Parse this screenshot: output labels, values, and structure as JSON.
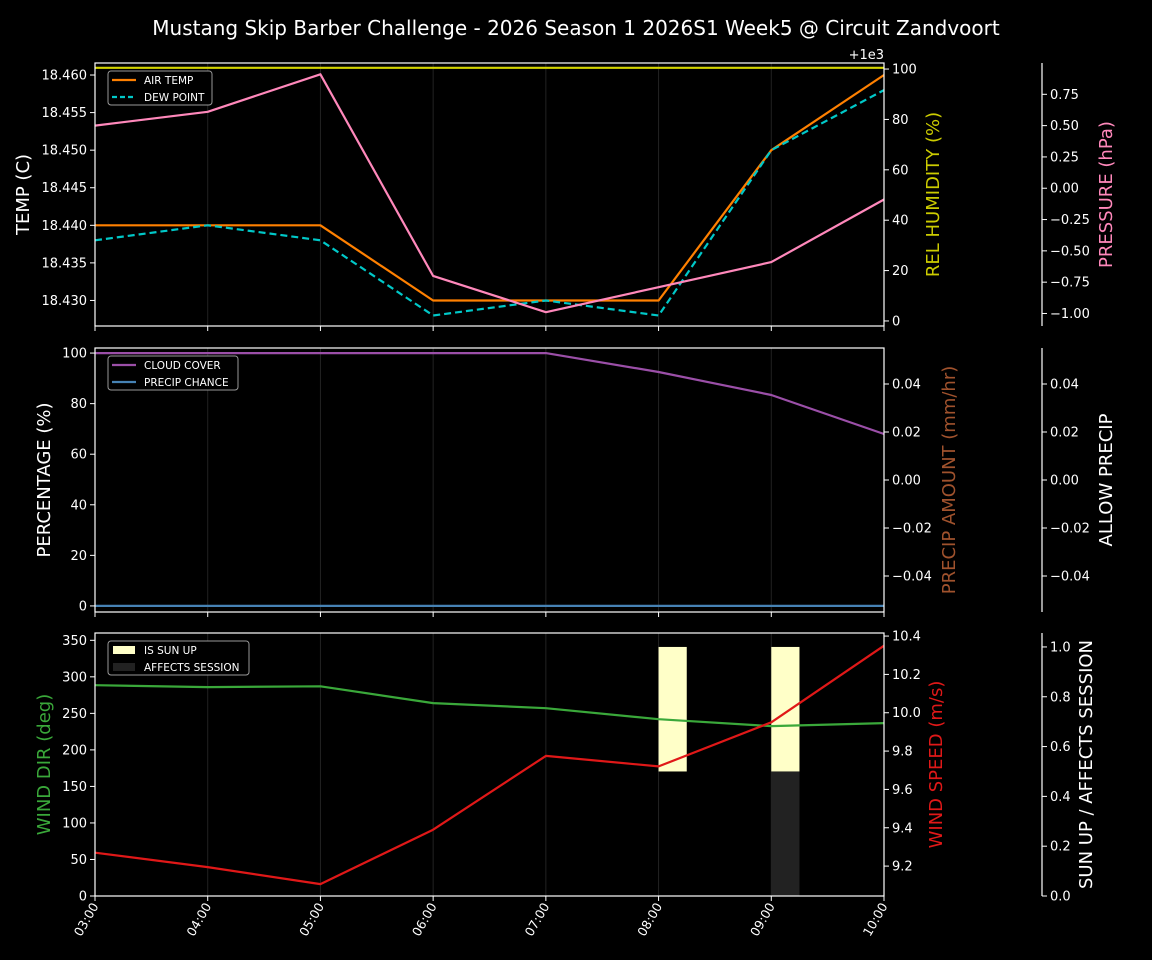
{
  "chart_data": {
    "type": "line",
    "title": "Mustang Skip Barber Challenge - 2026 Season 1 2026S1 Week5 @ Circuit Zandvoort",
    "x": [
      "03:00",
      "04:00",
      "05:00",
      "06:00",
      "07:00",
      "08:00",
      "09:00",
      "10:00"
    ],
    "grid": "vertical lines at each hour",
    "panels": [
      {
        "left_axis": {
          "label": "TEMP (C)",
          "color": "#ffffff",
          "lim": [
            18.4266,
            18.4616
          ],
          "ticks": [
            "18.430",
            "18.435",
            "18.440",
            "18.445",
            "18.450",
            "18.455",
            "18.460"
          ]
        },
        "right_axis": {
          "label": "REL HUMIDITY (%)",
          "color": "#cccc00",
          "lim": [
            -2,
            102.4
          ],
          "ticks": [
            "0",
            "20",
            "40",
            "60",
            "80",
            "100"
          ],
          "offset_text": "+1e3"
        },
        "third_axis": {
          "label": "PRESSURE (hPa)",
          "color": "#ff88bb",
          "lim": [
            -1.1,
            1.0
          ],
          "ticks": [
            "-1.00",
            "-0.75",
            "-0.50",
            "-0.25",
            "0.00",
            "0.25",
            "0.50",
            "0.75"
          ]
        },
        "legend": {
          "placement": "upper-left",
          "entries": [
            "AIR TEMP",
            "DEW POINT"
          ]
        },
        "series": [
          {
            "name": "AIR TEMP",
            "axis": "left",
            "color": "#ff8000",
            "dash": false,
            "values": [
              18.44,
              18.44,
              18.44,
              18.43,
              18.43,
              18.43,
              18.45,
              18.46
            ]
          },
          {
            "name": "DEW POINT",
            "axis": "left",
            "color": "#00c8c8",
            "dash": true,
            "values": [
              18.438,
              18.44,
              18.438,
              18.428,
              18.43,
              18.428,
              18.45,
              18.458
            ]
          },
          {
            "axis": "right",
            "color": "#d4d400",
            "dash": false,
            "values": [
              100.5,
              100.5,
              100.5,
              100.5,
              100.5,
              100.5,
              100.5,
              100.5
            ]
          },
          {
            "axis": "third",
            "color": "#ff88bb",
            "dash": false,
            "values": [
              0.5,
              0.61,
              0.91,
              -0.7,
              -0.99,
              -0.79,
              -0.59,
              -0.09
            ]
          }
        ]
      },
      {
        "left_axis": {
          "label": "PERCENTAGE (%)",
          "color": "#ffffff",
          "lim": [
            -2.4,
            102
          ],
          "ticks": [
            "0",
            "20",
            "40",
            "60",
            "80",
            "100"
          ]
        },
        "right_axis": {
          "label": "PRECIP AMOUNT (mm/hr)",
          "color": "#a0522d",
          "lim": [
            -0.055,
            0.055
          ],
          "ticks": [
            "-0.04",
            "-0.02",
            "0.00",
            "0.02",
            "0.04"
          ]
        },
        "third_axis": {
          "label": "ALLOW PRECIP",
          "color": "#ffffff",
          "lim": [
            -0.055,
            0.055
          ],
          "ticks": [
            "-0.04",
            "-0.02",
            "0.00",
            "0.02",
            "0.04"
          ]
        },
        "legend": {
          "placement": "upper-left",
          "entries": [
            "CLOUD COVER",
            "PRECIP CHANCE"
          ]
        },
        "series": [
          {
            "name": "CLOUD COVER",
            "axis": "left",
            "color": "#9b4fa8",
            "dash": false,
            "values": [
              100,
              100,
              100,
              100,
              100,
              92.5,
              83.4,
              68
            ]
          },
          {
            "name": "PRECIP CHANCE",
            "axis": "left",
            "color": "#4682b4",
            "dash": false,
            "values": [
              0,
              0,
              0,
              0,
              0,
              0,
              0,
              0
            ]
          }
        ]
      },
      {
        "left_axis": {
          "label": "WIND DIR (deg)",
          "color": "#3aa83a",
          "lim": [
            0,
            360
          ],
          "ticks": [
            "0",
            "50",
            "100",
            "150",
            "200",
            "250",
            "300",
            "350"
          ]
        },
        "right_axis": {
          "label": "WIND SPEED (m/s)",
          "color": "#e01818",
          "lim": [
            9.044,
            10.416
          ],
          "ticks": [
            "9.2",
            "9.4",
            "9.6",
            "9.8",
            "10.0",
            "10.2",
            "10.4"
          ]
        },
        "third_axis": {
          "label": "SUN UP / AFFECTS SESSION",
          "color": "#ffffff",
          "lim": [
            0,
            1.056
          ],
          "ticks": [
            "0.0",
            "0.2",
            "0.4",
            "0.6",
            "0.8",
            "1.0"
          ]
        },
        "legend": {
          "placement": "upper-left",
          "entries": [
            "IS SUN UP",
            "AFFECTS SESSION"
          ]
        },
        "series": [
          {
            "axis": "left",
            "color": "#3aa83a",
            "dash": false,
            "values": [
              288.6,
              286,
              287,
              264,
              257,
              242,
              232.6,
              236.7
            ]
          },
          {
            "axis": "right",
            "color": "#e01818",
            "dash": false,
            "values": [
              9.27,
              9.195,
              9.106,
              9.39,
              9.775,
              9.72,
              9.95,
              10.35
            ]
          }
        ],
        "bars": [
          {
            "name": "IS SUN UP",
            "color": "#ffffc8",
            "values": [
              0,
              0,
              0,
              0,
              0,
              1,
              1,
              0
            ]
          },
          {
            "name": "AFFECTS SESSION",
            "color": "#222222",
            "values": [
              0,
              0,
              0,
              0,
              0,
              0,
              1,
              0
            ]
          }
        ]
      }
    ]
  }
}
